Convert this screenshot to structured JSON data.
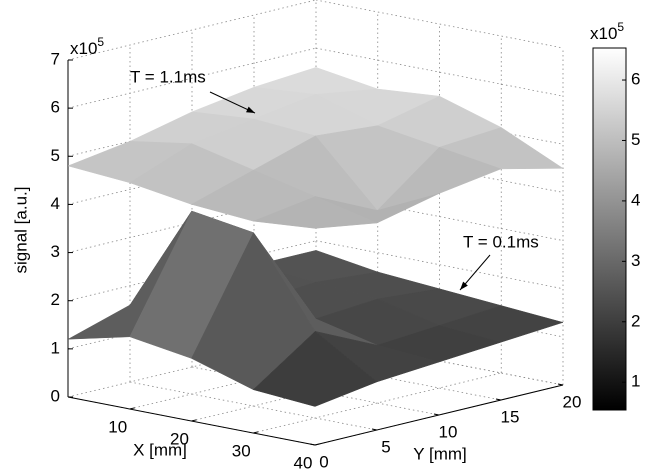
{
  "chart_data": {
    "type": "surface",
    "zlabel": "signal [a.u.]",
    "xlabel": "X [mm]",
    "ylabel": "Y [mm]",
    "zscale_label": {
      "text": "x10",
      "sup": "5"
    },
    "x": [
      0,
      10,
      20,
      30,
      40
    ],
    "y": [
      0,
      5,
      10,
      15,
      20
    ],
    "xlim": [
      0,
      40
    ],
    "ylim": [
      0,
      20
    ],
    "zlim": [
      0,
      7
    ],
    "xticks": [
      10,
      20,
      30,
      40
    ],
    "yticks": [
      0,
      5,
      10,
      15,
      20
    ],
    "zticks": [
      0,
      1,
      2,
      3,
      4,
      5,
      6,
      7
    ],
    "grid": true,
    "series": [
      {
        "name": "T = 1.1ms",
        "values": [
          [
            1.2,
            1.6,
            1.7,
            1.8,
            1.8
          ],
          [
            1.5,
            3.8,
            1.6,
            1.7,
            1.6
          ],
          [
            1.3,
            3.6,
            1.5,
            1.6,
            1.5
          ],
          [
            0.9,
            1.8,
            1.2,
            1.3,
            1.4
          ],
          [
            0.8,
            1.0,
            1.1,
            1.2,
            1.3
          ]
        ]
      },
      {
        "name": "T = 0.1ms",
        "values": [
          [
            4.8,
            5.0,
            5.3,
            5.5,
            5.6
          ],
          [
            4.7,
            5.2,
            5.4,
            5.6,
            5.4
          ],
          [
            4.5,
            4.9,
            5.3,
            5.2,
            5.5
          ],
          [
            4.4,
            4.6,
            4.0,
            5.0,
            5.1
          ],
          [
            4.5,
            4.3,
            4.6,
            4.8,
            4.5
          ]
        ]
      }
    ],
    "colorbar": {
      "clim": [
        0.54,
        6.53
      ],
      "ticks": [
        1,
        2,
        3,
        4,
        5,
        6
      ],
      "scale_label": {
        "text": "x10",
        "sup": "5"
      }
    }
  }
}
